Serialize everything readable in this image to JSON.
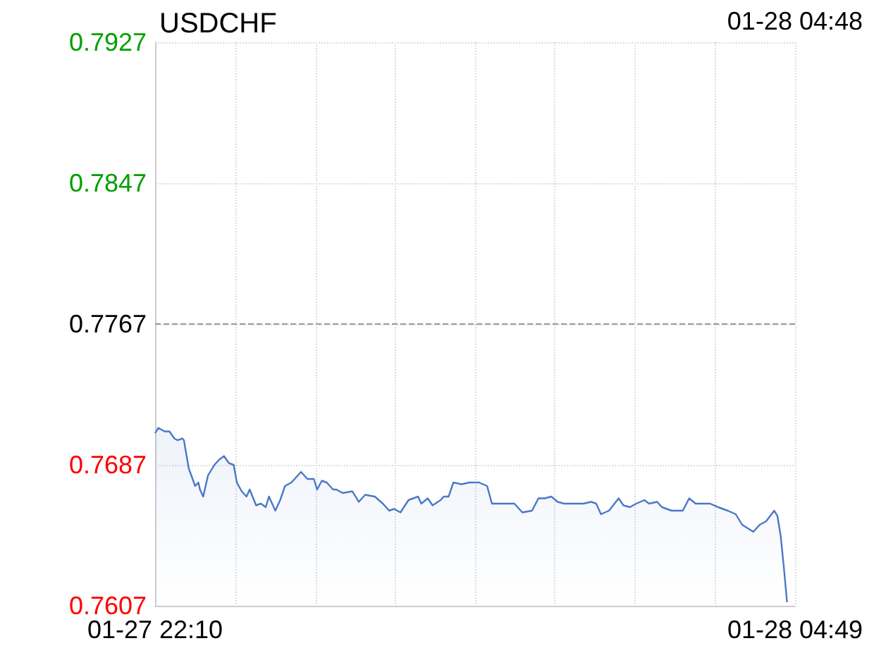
{
  "chart_data": {
    "type": "area",
    "title": "USDCHF",
    "annotations": [
      "01-28 04:48"
    ],
    "xlim": [
      "--01-27T22:10",
      "--01-28T04:49"
    ],
    "xticks": [
      {
        "value": "--01-27T22:10",
        "label": "01-27 22:10"
      },
      {
        "value": "--01-27T23:00",
        "label": null
      },
      {
        "value": "--01-27T23:50",
        "label": null
      },
      {
        "value": "--01-28T00:40",
        "label": null
      },
      {
        "value": "--01-28T01:30",
        "label": null
      },
      {
        "value": "--01-28T02:19",
        "label": null
      },
      {
        "value": "--01-28T03:09",
        "label": null
      },
      {
        "value": "--01-28T03:59",
        "label": null
      },
      {
        "value": "--01-28T04:49",
        "label": "01-28 04:49"
      }
    ],
    "ylim": [
      0.7607,
      0.7927
    ],
    "yticks": [
      0.7607,
      0.7687,
      0.7767,
      0.7847,
      0.7927
    ],
    "grid": true,
    "ref_lines": [
      {
        "axis": "y",
        "value": 0.7767,
        "color": "#999999",
        "line_style": "dashed"
      }
    ],
    "series": [
      {
        "color": "#4a78c8",
        "x": [
          "--01-27T22:10",
          "--01-27T22:12",
          "--01-27T22:16",
          "--01-27T22:19",
          "--01-27T22:22",
          "--01-27T22:24",
          "--01-27T22:27",
          "--01-27T22:28",
          "--01-27T22:31",
          "--01-27T22:35",
          "--01-27T22:37",
          "--01-27T22:38",
          "--01-27T22:40",
          "--01-27T22:43",
          "--01-27T22:47",
          "--01-27T22:50",
          "--01-27T22:53",
          "--01-27T22:56",
          "--01-27T22:59",
          "--01-27T23:01",
          "--01-27T23:04",
          "--01-27T23:07",
          "--01-27T23:09",
          "--01-27T23:13",
          "--01-27T23:16",
          "--01-27T23:19",
          "--01-27T23:21",
          "--01-27T23:25",
          "--01-27T23:28",
          "--01-27T23:31",
          "--01-27T23:35",
          "--01-27T23:41",
          "--01-27T23:45",
          "--01-27T23:49",
          "--01-27T23:51",
          "--01-27T23:54",
          "--01-27T23:57",
          "--01-28T00:01",
          "--01-28T00:03",
          "--01-28T00:07",
          "--01-28T00:13",
          "--01-28T00:17",
          "--01-28T00:21",
          "--01-28T00:27",
          "--01-28T00:32",
          "--01-28T00:36",
          "--01-28T00:39",
          "--01-28T00:43",
          "--01-28T00:48",
          "--01-28T00:54",
          "--01-28T00:56",
          "--01-28T01:00",
          "--01-28T01:03",
          "--01-28T01:08",
          "--01-28T01:10",
          "--01-28T01:13",
          "--01-28T01:16",
          "--01-28T01:21",
          "--01-28T01:26",
          "--01-28T01:32",
          "--01-28T01:37",
          "--01-28T01:40",
          "--01-28T01:45",
          "--01-28T01:49",
          "--01-28T01:54",
          "--01-28T01:59",
          "--01-28T02:05",
          "--01-28T02:09",
          "--01-28T02:13",
          "--01-28T02:17",
          "--01-28T02:21",
          "--01-28T02:25",
          "--01-28T02:28",
          "--01-28T02:32",
          "--01-28T02:37",
          "--01-28T02:42",
          "--01-28T02:45",
          "--01-28T02:48",
          "--01-28T02:53",
          "--01-28T02:59",
          "--01-28T03:02",
          "--01-28T03:06",
          "--01-28T03:10",
          "--01-28T03:15",
          "--01-28T03:18",
          "--01-28T03:23",
          "--01-28T03:26",
          "--01-28T03:32",
          "--01-28T03:39",
          "--01-28T03:43",
          "--01-28T03:47",
          "--01-28T03:52",
          "--01-28T03:56",
          "--01-28T04:01",
          "--01-28T04:07",
          "--01-28T04:12",
          "--01-28T04:16",
          "--01-28T04:23",
          "--01-28T04:27",
          "--01-28T04:31",
          "--01-28T04:36",
          "--01-28T04:38",
          "--01-28T04:40",
          "--01-28T04:42",
          "--01-28T04:44"
        ],
        "values": [
          0.7705,
          0.7708,
          0.7706,
          0.7706,
          0.7702,
          0.7701,
          0.7702,
          0.7701,
          0.7685,
          0.7675,
          0.7677,
          0.7673,
          0.7669,
          0.7681,
          0.7687,
          0.769,
          0.7692,
          0.7688,
          0.7687,
          0.7677,
          0.7672,
          0.7669,
          0.7673,
          0.7664,
          0.7665,
          0.7663,
          0.7669,
          0.7661,
          0.7667,
          0.7675,
          0.7677,
          0.7683,
          0.7679,
          0.7679,
          0.7673,
          0.7678,
          0.7677,
          0.7673,
          0.7673,
          0.7671,
          0.7672,
          0.7666,
          0.767,
          0.7669,
          0.7665,
          0.7661,
          0.7662,
          0.766,
          0.7667,
          0.7669,
          0.7665,
          0.7668,
          0.7664,
          0.7667,
          0.7669,
          0.7669,
          0.7677,
          0.7676,
          0.7677,
          0.7677,
          0.7675,
          0.7665,
          0.7665,
          0.7665,
          0.7665,
          0.766,
          0.7661,
          0.7668,
          0.7668,
          0.7669,
          0.7666,
          0.7665,
          0.7665,
          0.7665,
          0.7665,
          0.7666,
          0.7665,
          0.7659,
          0.7661,
          0.7668,
          0.7664,
          0.7663,
          0.7665,
          0.7667,
          0.7665,
          0.7666,
          0.7663,
          0.7661,
          0.7661,
          0.7668,
          0.7665,
          0.7665,
          0.7665,
          0.7663,
          0.7661,
          0.7659,
          0.7653,
          0.7649,
          0.7653,
          0.7655,
          0.7661,
          0.7658,
          0.7647,
          0.7629,
          0.7609
        ]
      }
    ]
  }
}
